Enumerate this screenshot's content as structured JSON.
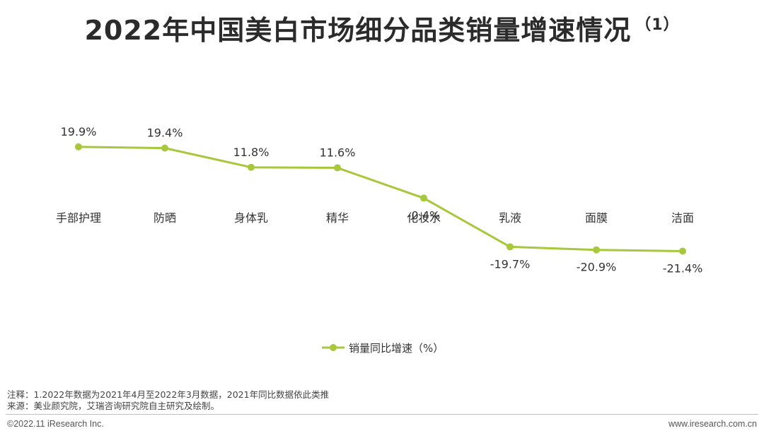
{
  "title": {
    "main": "2022年中国美白市场细分品类销量增速情况",
    "suffix": "（1）"
  },
  "chart_data": {
    "type": "line",
    "categories": [
      "手部护理",
      "防晒",
      "身体乳",
      "精华",
      "化妆水",
      "乳液",
      "面膜",
      "洁面"
    ],
    "series": [
      {
        "name": "销量同比增速（%）",
        "values": [
          19.9,
          19.4,
          11.8,
          11.6,
          -0.4,
          -19.7,
          -20.9,
          -21.4
        ],
        "labels": [
          "19.9%",
          "19.4%",
          "11.8%",
          "11.6%",
          "-0.4%",
          "-19.7%",
          "-20.9%",
          "-21.4%"
        ],
        "color": "#a6c83a"
      }
    ],
    "legend": "bottom-center",
    "grid": false
  },
  "notes": {
    "line1": "注释：1.2022年数据为2021年4月至2022年3月数据，2021年同比数据依此类推",
    "line2": "来源：美业颜究院，艾瑞咨询研究院自主研究及绘制。"
  },
  "footer": {
    "copyright": "©2022.11 iResearch Inc.",
    "website": "www.iresearch.com.cn"
  }
}
